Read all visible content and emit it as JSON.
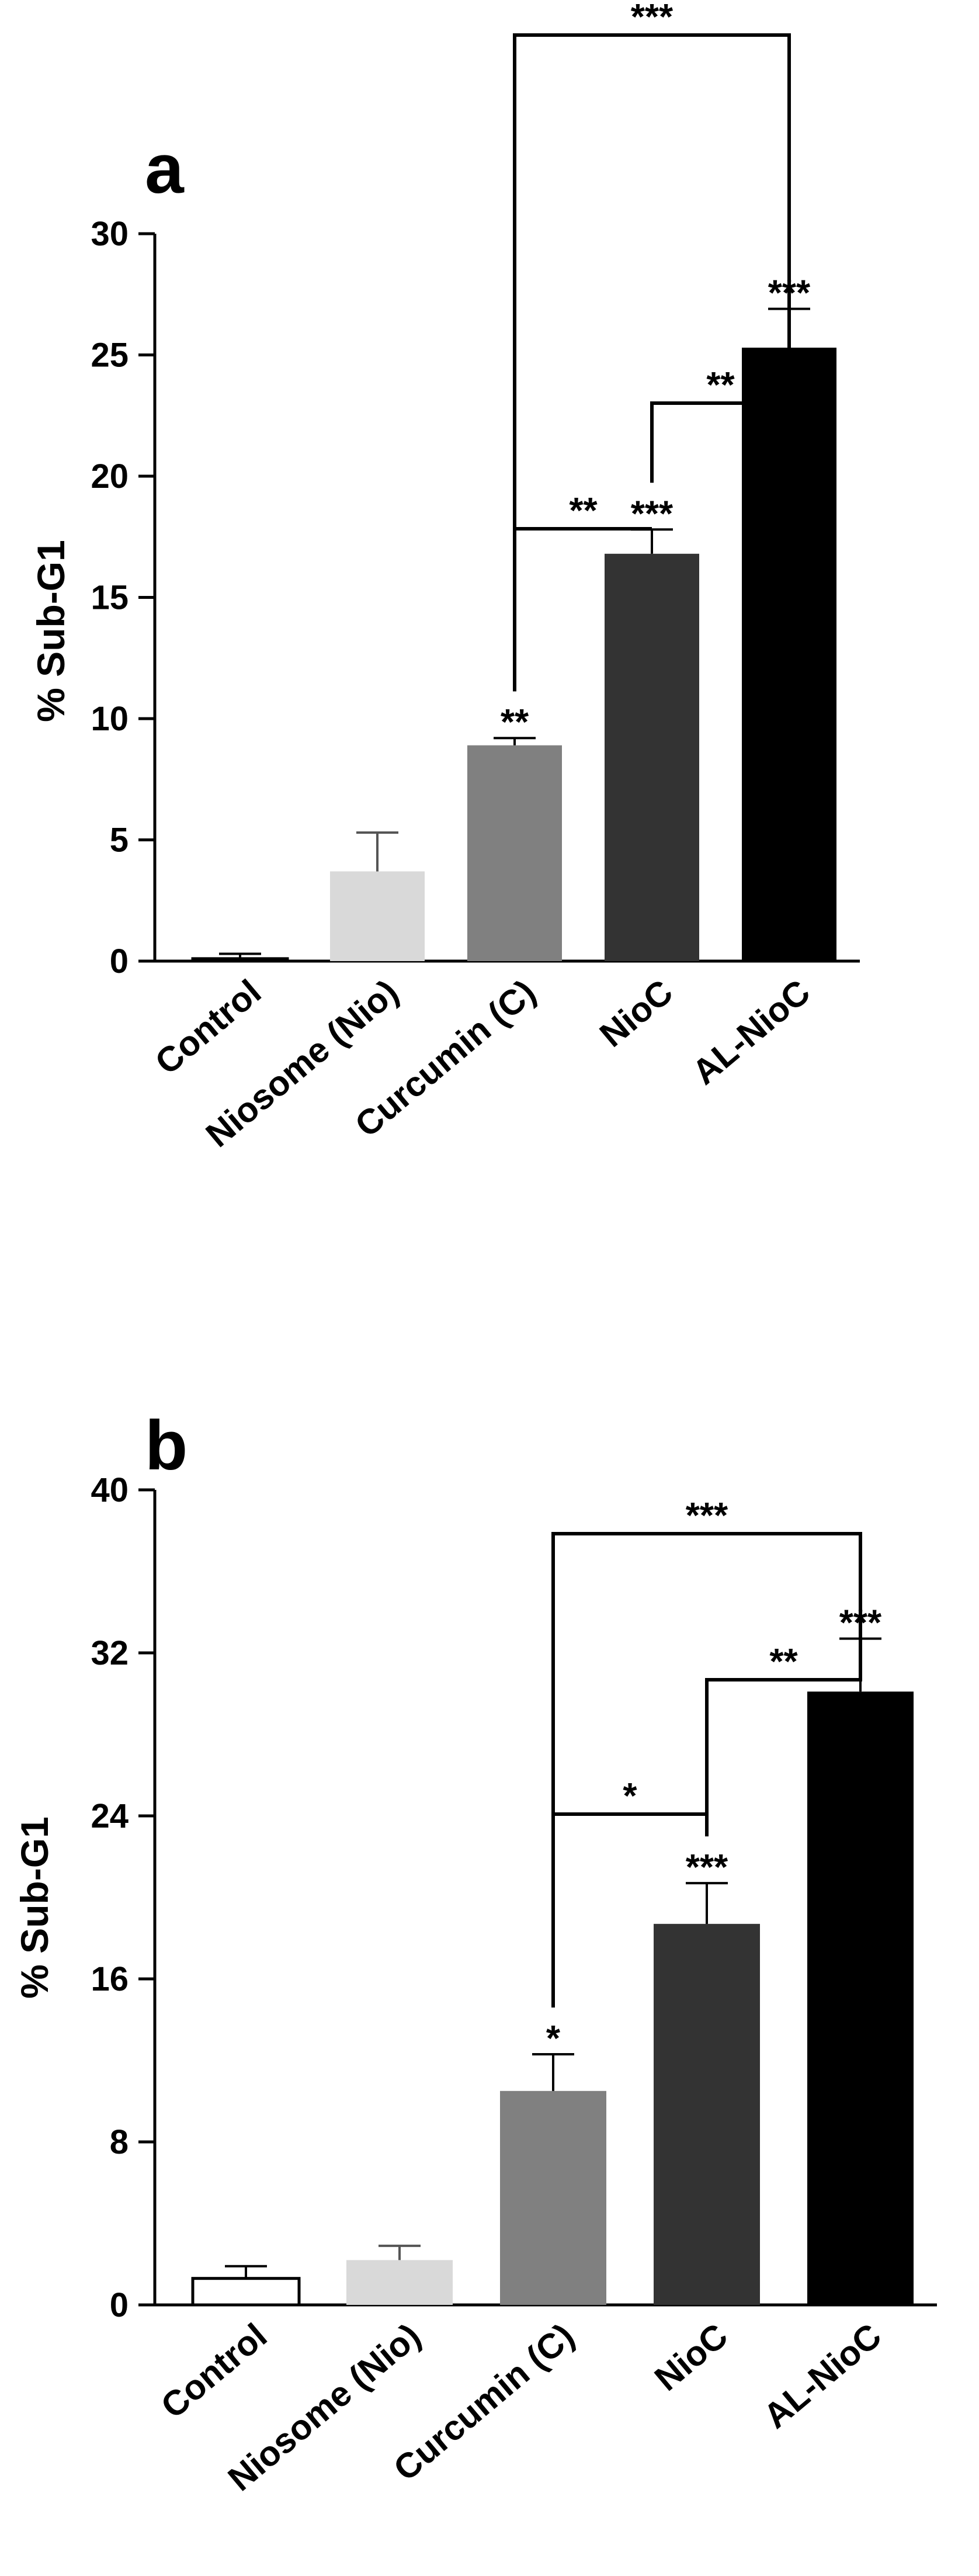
{
  "chart_data": [
    {
      "panel": "a",
      "type": "bar",
      "ylabel": "% Sub-G1",
      "ylim": [
        0,
        30
      ],
      "yticks": [
        0,
        5,
        10,
        15,
        20,
        25,
        30
      ],
      "categories": [
        "Control",
        "Niosome (Nio)",
        "Curcumin (C)",
        "NioC",
        "AL-NioC"
      ],
      "values": [
        0.1,
        3.7,
        8.9,
        16.8,
        25.3
      ],
      "errors": [
        0.2,
        1.6,
        0.3,
        1.0,
        1.6
      ],
      "colors": [
        "#ffffff",
        "#d9d9d9",
        "#808080",
        "#333333",
        "#000000"
      ],
      "bar_annotations": [
        "",
        "",
        "**",
        "***",
        "***"
      ],
      "brackets": [
        {
          "from": 2,
          "to": 3,
          "label": "**"
        },
        {
          "from": 3,
          "to": 4,
          "label": "**"
        },
        {
          "from": 2,
          "to": 4,
          "label": "***"
        }
      ]
    },
    {
      "panel": "b",
      "type": "bar",
      "ylabel": "% Sub-G1",
      "ylim": [
        0,
        40
      ],
      "yticks": [
        0,
        8,
        16,
        24,
        32,
        40
      ],
      "categories": [
        "Control",
        "Niosome (Nio)",
        "Curcumin (C)",
        "NioC",
        "AL-NioC"
      ],
      "values": [
        1.3,
        2.2,
        10.5,
        18.7,
        30.1
      ],
      "errors": [
        0.6,
        0.7,
        1.8,
        2.0,
        2.6
      ],
      "colors": [
        "#ffffff",
        "#d9d9d9",
        "#808080",
        "#333333",
        "#000000"
      ],
      "bar_annotations": [
        "",
        "",
        "*",
        "***",
        "***"
      ],
      "brackets": [
        {
          "from": 2,
          "to": 3,
          "label": "*"
        },
        {
          "from": 3,
          "to": 4,
          "label": "**"
        },
        {
          "from": 2,
          "to": 4,
          "label": "***"
        }
      ]
    }
  ]
}
